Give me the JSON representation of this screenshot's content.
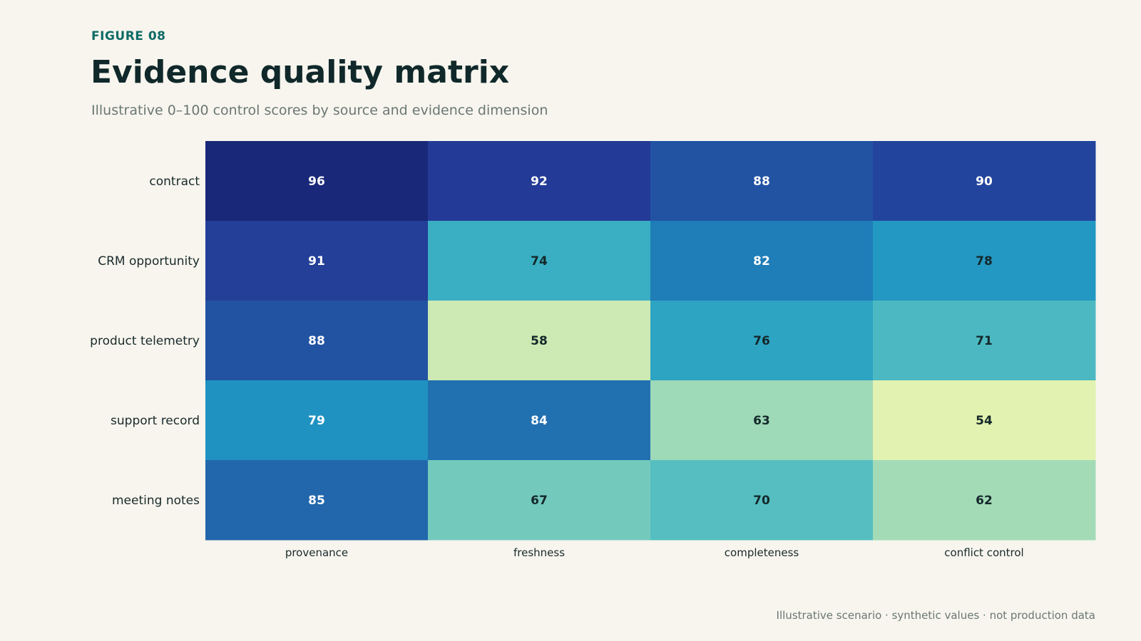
{
  "header": {
    "kicker": "FIGURE 08",
    "title": "Evidence quality matrix",
    "subtitle": "Illustrative 0–100 control scores by source and evidence dimension"
  },
  "footnote": "Illustrative scenario · synthetic values · not production data",
  "chart_data": {
    "type": "heatmap",
    "title": "Evidence quality matrix",
    "subtitle": "Illustrative 0–100 control scores by source and evidence dimension",
    "rows": [
      "contract",
      "CRM opportunity",
      "product telemetry",
      "support record",
      "meeting notes"
    ],
    "columns": [
      "provenance",
      "freshness",
      "completeness",
      "conflict control"
    ],
    "values": [
      [
        96,
        92,
        88,
        90
      ],
      [
        91,
        74,
        82,
        78
      ],
      [
        88,
        58,
        76,
        71
      ],
      [
        79,
        84,
        63,
        54
      ],
      [
        85,
        67,
        70,
        62
      ]
    ],
    "value_range": [
      0,
      100
    ],
    "colors": {
      "96": "#192878",
      "92": "#233a96",
      "88": "#2253a2",
      "90": "#22449c",
      "91": "#233f98",
      "74": "#3aaec2",
      "82": "#1f7db8",
      "78": "#2398c3",
      "58": "#cdeab4",
      "76": "#2da4c2",
      "71": "#4cb9c2",
      "79": "#1f92c1",
      "84": "#2170b0",
      "63": "#9ed9b8",
      "54": "#e2f2b0",
      "85": "#2267ab",
      "67": "#74c9bd",
      "70": "#56bec0",
      "62": "#a3dbb7"
    },
    "text_colors": {
      "light": "#ffffff",
      "dark": "#14282a"
    },
    "dark_text_threshold": 78
  }
}
